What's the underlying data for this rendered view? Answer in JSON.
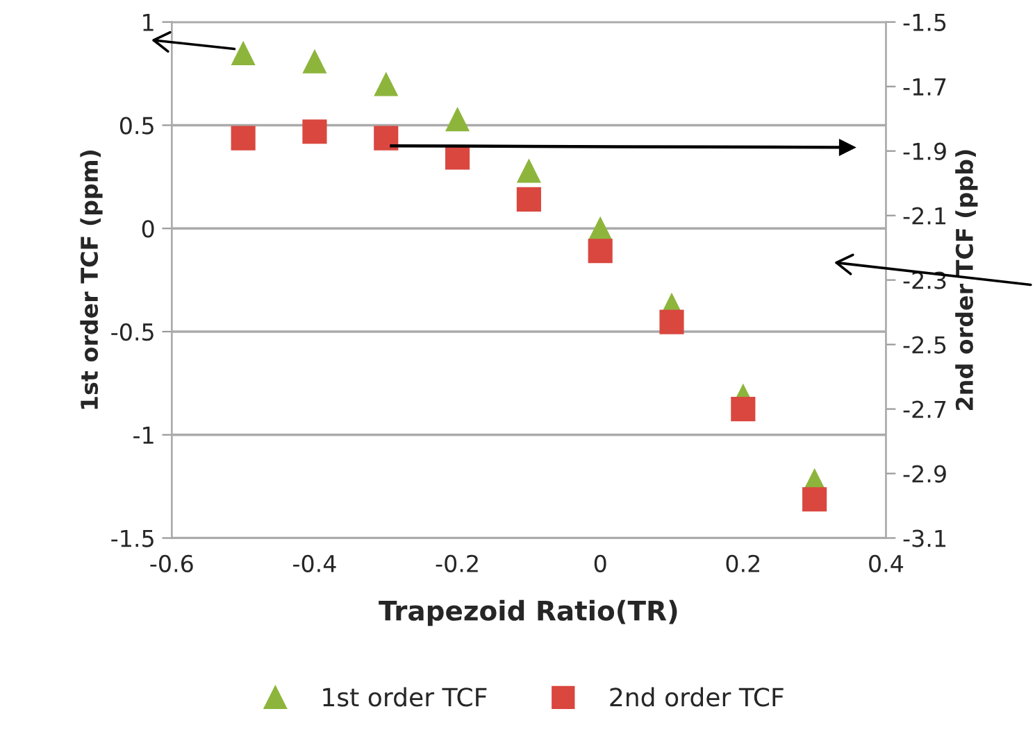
{
  "chart_data": {
    "type": "scatter",
    "xlabel": "Trapezoid Ratio(TR)",
    "ylabel": "1st order TCF (ppm)",
    "y2label": "2nd order TCF (ppb)",
    "x": [
      -0.5,
      -0.4,
      -0.3,
      -0.2,
      -0.1,
      0,
      0.1,
      0.2,
      0.3
    ],
    "series": [
      {
        "name": "1st order TCF",
        "color": "#8db53c",
        "marker": "triangle",
        "values": [
          0.85,
          0.81,
          0.7,
          0.53,
          0.28,
          0,
          -0.37,
          -0.81,
          -1.22
        ]
      },
      {
        "name": "2nd order TCF",
        "color": "#d9473f",
        "marker": "square",
        "axis": "y2",
        "values": [
          -1.86,
          -1.84,
          -1.86,
          -1.92,
          -2.05,
          -2.21,
          -2.43,
          -2.7,
          -2.98
        ]
      }
    ],
    "xlim": [
      -0.6,
      0.4
    ],
    "xticks": [
      -0.6,
      -0.4,
      -0.2,
      0,
      0.2,
      0.4
    ],
    "ylim": [
      -1.5,
      1
    ],
    "yticks": [
      -1.5,
      -1,
      -0.5,
      0,
      0.5,
      1
    ],
    "y2lim": [
      -3.1,
      -1.5
    ],
    "y2ticks": [
      -3.1,
      -2.9,
      -2.7,
      -2.5,
      -2.3,
      -2.1,
      -1.9,
      -1.7,
      -1.5
    ],
    "grid": "y",
    "legend": "bottom"
  }
}
